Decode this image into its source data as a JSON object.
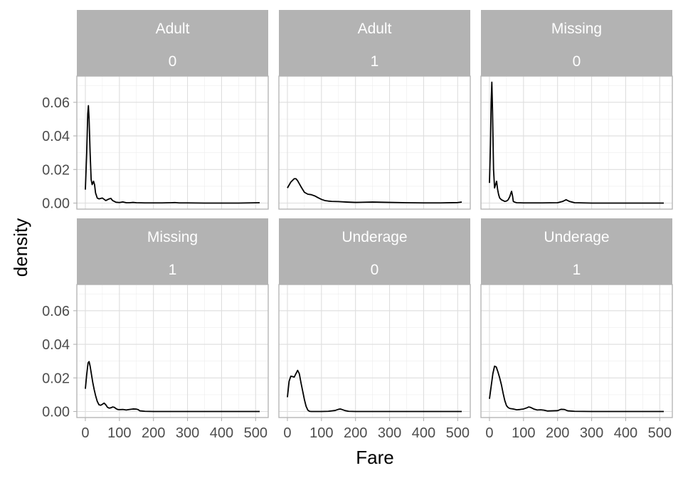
{
  "chart_data": {
    "type": "line",
    "facet_layout": "2 rows x 3 columns, wrapped",
    "xlabel": "Fare",
    "ylabel": "density",
    "x_ticks": [
      0,
      100,
      200,
      300,
      400,
      500
    ],
    "y_ticks": [
      0.0,
      0.02,
      0.04,
      0.06
    ],
    "y_tick_labels": [
      "0.00",
      "0.02",
      "0.04",
      "0.06"
    ],
    "xlim": [
      -25,
      537
    ],
    "ylim": [
      -0.0036,
      0.0756
    ],
    "grid": true,
    "panels": [
      {
        "strip": [
          "Adult",
          "0"
        ],
        "x": [
          0,
          4,
          7,
          9,
          11,
          14,
          17,
          20,
          24,
          27,
          30,
          35,
          40,
          50,
          60,
          70,
          75,
          80,
          90,
          100,
          110,
          120,
          130,
          140,
          150,
          175,
          200,
          225,
          250,
          263,
          275,
          300,
          350,
          400,
          450,
          512
        ],
        "y": [
          0.008,
          0.03,
          0.053,
          0.058,
          0.05,
          0.03,
          0.014,
          0.011,
          0.013,
          0.011,
          0.006,
          0.003,
          0.0025,
          0.003,
          0.0015,
          0.0025,
          0.0028,
          0.0015,
          0.0005,
          0.0003,
          0.0007,
          0.0002,
          0.0002,
          0.0004,
          0.0002,
          0.0001,
          0.0001,
          0.0001,
          0.0002,
          0.0003,
          0.0001,
          0.0001,
          0.0,
          0.0,
          0.0,
          0.0002
        ]
      },
      {
        "strip": [
          "Adult",
          "1"
        ],
        "x": [
          0,
          10,
          20,
          25,
          30,
          40,
          50,
          60,
          70,
          80,
          90,
          100,
          110,
          120,
          130,
          150,
          175,
          200,
          250,
          300,
          350,
          400,
          450,
          500,
          512
        ],
        "y": [
          0.009,
          0.0125,
          0.0145,
          0.0145,
          0.0133,
          0.0097,
          0.0064,
          0.0053,
          0.005,
          0.0043,
          0.0032,
          0.0022,
          0.0015,
          0.0012,
          0.001,
          0.0009,
          0.0006,
          0.0004,
          0.0006,
          0.0004,
          0.0002,
          0.0001,
          0.0001,
          0.0003,
          0.0006
        ]
      },
      {
        "strip": [
          "Missing",
          "0"
        ],
        "x": [
          0,
          3,
          5,
          7,
          9,
          12,
          15,
          18,
          21,
          24,
          27,
          30,
          35,
          40,
          45,
          50,
          55,
          60,
          63,
          65,
          68,
          70,
          75,
          80,
          100,
          150,
          200,
          215,
          225,
          235,
          250,
          300,
          400,
          512
        ],
        "y": [
          0.012,
          0.035,
          0.06,
          0.072,
          0.055,
          0.02,
          0.009,
          0.011,
          0.013,
          0.008,
          0.005,
          0.003,
          0.002,
          0.0015,
          0.001,
          0.0012,
          0.002,
          0.004,
          0.006,
          0.007,
          0.004,
          0.001,
          0.0005,
          0.0002,
          0.0001,
          0.0001,
          0.0002,
          0.001,
          0.002,
          0.001,
          0.0002,
          0.0,
          0.0,
          0.0
        ]
      },
      {
        "strip": [
          "Missing",
          "1"
        ],
        "x": [
          0,
          4,
          8,
          11,
          14,
          18,
          22,
          26,
          30,
          35,
          40,
          45,
          50,
          55,
          60,
          65,
          70,
          75,
          80,
          85,
          90,
          95,
          100,
          110,
          120,
          130,
          140,
          150,
          155,
          160,
          175,
          200,
          300,
          400,
          512
        ],
        "y": [
          0.0135,
          0.022,
          0.029,
          0.0297,
          0.027,
          0.022,
          0.017,
          0.013,
          0.0095,
          0.006,
          0.004,
          0.0037,
          0.0043,
          0.005,
          0.004,
          0.0025,
          0.002,
          0.0022,
          0.0027,
          0.0025,
          0.0017,
          0.0012,
          0.0011,
          0.0012,
          0.0009,
          0.0012,
          0.0015,
          0.0014,
          0.0011,
          0.0004,
          0.0001,
          0.0,
          0.0,
          0.0,
          0.0
        ]
      },
      {
        "strip": [
          "Underage",
          "0"
        ],
        "x": [
          0,
          5,
          10,
          15,
          20,
          25,
          30,
          35,
          40,
          45,
          50,
          55,
          60,
          65,
          70,
          80,
          100,
          120,
          140,
          150,
          155,
          160,
          170,
          180,
          200,
          250,
          300,
          400,
          512
        ],
        "y": [
          0.0085,
          0.018,
          0.021,
          0.0208,
          0.0205,
          0.0225,
          0.0245,
          0.0225,
          0.017,
          0.012,
          0.007,
          0.003,
          0.0008,
          0.0001,
          0.0,
          0.0,
          0.0,
          0.0001,
          0.0006,
          0.0013,
          0.0015,
          0.0012,
          0.0005,
          0.0001,
          0.0,
          0.0,
          0.0,
          0.0,
          0.0
        ]
      },
      {
        "strip": [
          "Underage",
          "1"
        ],
        "x": [
          0,
          5,
          10,
          15,
          20,
          25,
          30,
          35,
          40,
          45,
          50,
          55,
          60,
          70,
          80,
          90,
          100,
          110,
          115,
          120,
          130,
          140,
          150,
          160,
          170,
          200,
          210,
          220,
          230,
          250,
          300,
          400,
          512
        ],
        "y": [
          0.0075,
          0.015,
          0.0225,
          0.027,
          0.0265,
          0.0235,
          0.02,
          0.016,
          0.011,
          0.0065,
          0.0035,
          0.0023,
          0.0018,
          0.0015,
          0.001,
          0.0012,
          0.0015,
          0.0022,
          0.0027,
          0.0025,
          0.0015,
          0.0009,
          0.001,
          0.0008,
          0.0003,
          0.0005,
          0.0013,
          0.0012,
          0.0004,
          0.0001,
          0.0,
          0.0,
          0.0
        ]
      }
    ]
  }
}
